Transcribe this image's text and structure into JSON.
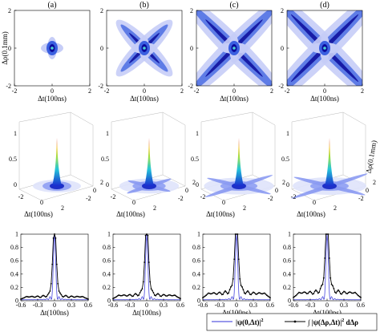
{
  "chart_data": [
    {
      "row": "top",
      "type": "heatmap",
      "panels": [
        {
          "label": "(a)",
          "arms": 0.0
        },
        {
          "label": "(b)",
          "arms": 0.45
        },
        {
          "label": "(c)",
          "arms": 0.85
        },
        {
          "label": "(d)",
          "arms": 1.0
        }
      ],
      "xlabel": "Δt(100ns)",
      "ylabel": "Δρ(0.1mm)",
      "xlim": [
        -2,
        2
      ],
      "ylim": [
        -2,
        2
      ],
      "xticks": [
        "-2",
        "0",
        "2"
      ],
      "yticks": [
        "2",
        "0",
        "-2"
      ],
      "colors": {
        "core": "#0a0a9a",
        "mid": "#3a5fe0",
        "light": "#c6cdf7",
        "peak": "#4cd2d0"
      }
    },
    {
      "row": "middle",
      "type": "surface",
      "panels": [
        {
          "label": "(a)",
          "arms": 0.0
        },
        {
          "label": "(b)",
          "arms": 0.45
        },
        {
          "label": "(c)",
          "arms": 0.85
        },
        {
          "label": "(d)",
          "arms": 1.0
        }
      ],
      "xlabel": "Δt(100ns)",
      "ylabel": "Δρ(0.1mm)",
      "zticks": [
        "0",
        "0.5",
        "1"
      ],
      "xticks": [
        "-2",
        "0",
        "2"
      ],
      "yticks": [
        "-2",
        "0",
        "2"
      ],
      "zlim": [
        0,
        1
      ]
    },
    {
      "row": "bottom",
      "type": "line",
      "xlabel": "Δt(100ns)",
      "xlim": [
        -0.6,
        0.6
      ],
      "ylim": [
        0,
        1
      ],
      "xticks": [
        "-0.6",
        "-0.3",
        "0",
        "0.3",
        "0.6"
      ],
      "yticks": [
        "0",
        "0.2",
        "0.4",
        "0.6",
        "0.8",
        "1"
      ],
      "series": [
        {
          "name": "|ψ(0,Δt)|²",
          "color": "#5a5ae0",
          "marker": "none"
        },
        {
          "name": "∫|ψ(Δρ,Δt)|² dΔρ",
          "color": "#000000",
          "marker": "dot"
        }
      ],
      "panels": [
        {
          "label": "(a)",
          "side": 0.06
        },
        {
          "label": "(b)",
          "side": 0.08
        },
        {
          "label": "(c)",
          "side": 0.11
        },
        {
          "label": "(d)",
          "side": 0.12
        }
      ]
    }
  ],
  "legend": {
    "line1": "|ψ(0,Δt)|",
    "line1_sup": "2",
    "line2_a": "∫ |ψ(Δρ,Δt)|",
    "line2_sup": "2",
    "line2_b": " dΔρ"
  }
}
